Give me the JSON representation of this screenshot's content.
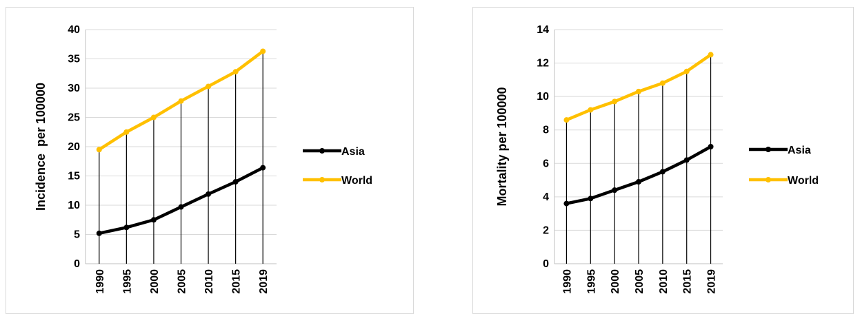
{
  "chart_data": [
    {
      "type": "line",
      "title": "",
      "xlabel": "",
      "ylabel": "Incidence  per 100000",
      "categories": [
        "1990",
        "1995",
        "2000",
        "2005",
        "2010",
        "2015",
        "2019"
      ],
      "ylim": [
        0,
        40
      ],
      "yticks": [
        "0",
        "5",
        "10",
        "15",
        "20",
        "25",
        "30",
        "35",
        "40"
      ],
      "grid": "horizontal",
      "drop_lines": true,
      "legend_position": "right",
      "series": [
        {
          "name": "Asia",
          "color": "#000000",
          "values": [
            5.2,
            6.2,
            7.5,
            9.7,
            11.9,
            14.0,
            16.4
          ]
        },
        {
          "name": "World",
          "color": "#FFC000",
          "values": [
            19.5,
            22.5,
            25.0,
            27.8,
            30.3,
            32.8,
            36.3
          ]
        }
      ]
    },
    {
      "type": "line",
      "title": "",
      "xlabel": "",
      "ylabel": "Mortality per 100000",
      "categories": [
        "1990",
        "1995",
        "2000",
        "2005",
        "2010",
        "2015",
        "2019"
      ],
      "ylim": [
        0,
        14
      ],
      "yticks": [
        "0",
        "2",
        "4",
        "6",
        "8",
        "10",
        "12",
        "14"
      ],
      "grid": "horizontal",
      "drop_lines": true,
      "legend_position": "right",
      "series": [
        {
          "name": "Asia",
          "color": "#000000",
          "values": [
            3.6,
            3.9,
            4.4,
            4.9,
            5.5,
            6.2,
            7.0
          ]
        },
        {
          "name": "World",
          "color": "#FFC000",
          "values": [
            8.6,
            9.2,
            9.7,
            10.3,
            10.8,
            11.5,
            12.5
          ]
        }
      ]
    }
  ]
}
